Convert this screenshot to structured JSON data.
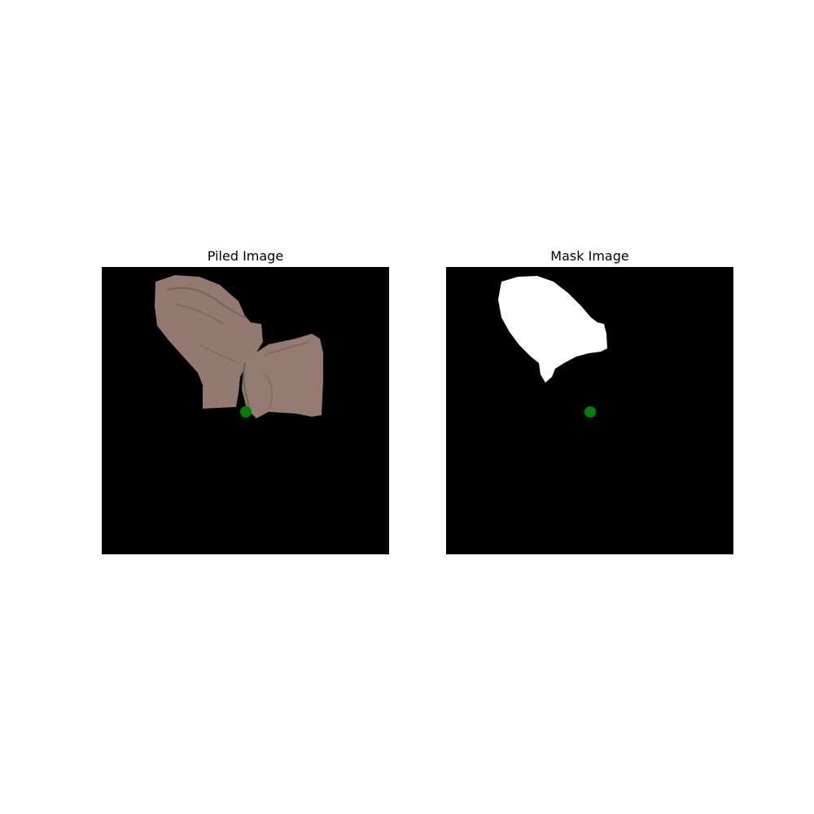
{
  "panels": {
    "piled": {
      "title": "Piled Image",
      "cloth_color": "#93796f",
      "cloth_shadow": "#6e5a52",
      "marker_color": "#007f00"
    },
    "mask": {
      "title": "Mask Image",
      "mask_color": "#ffffff",
      "marker_color": "#007f00"
    }
  },
  "background_color": "#000000"
}
